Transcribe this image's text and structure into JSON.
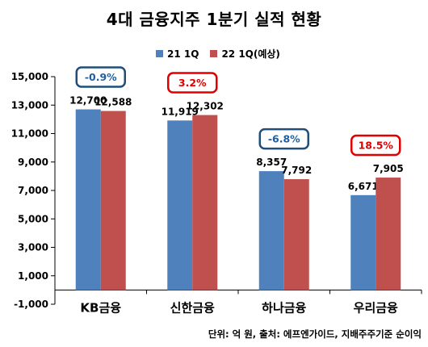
{
  "chart_data": {
    "type": "bar",
    "title": "4대 금융지주 1분기 실적 현황",
    "categories": [
      "KB금융",
      "신한금융",
      "하나금융",
      "우리금융"
    ],
    "series": [
      {
        "name": "21 1Q",
        "color": "#4F81BD",
        "values": [
          12700,
          11919,
          8357,
          6671
        ]
      },
      {
        "name": "22 1Q(예상)",
        "color": "#C0504D",
        "values": [
          12588,
          12302,
          7792,
          7905
        ]
      }
    ],
    "value_labels": [
      [
        "12,700",
        "11,919",
        "8,357",
        "6,671"
      ],
      [
        "12,588",
        "12,302",
        "7,792",
        "7,905"
      ]
    ],
    "yticks": [
      "-1,000",
      "1,000",
      "3,000",
      "5,000",
      "7,000",
      "9,000",
      "11,000",
      "13,000",
      "15,000"
    ],
    "ytick_values": [
      -1000,
      1000,
      3000,
      5000,
      7000,
      9000,
      11000,
      13000,
      15000
    ],
    "ylim": [
      -1000,
      15000
    ],
    "change_labels": [
      "-0.9%",
      "3.2%",
      "-6.8%",
      "18.5%"
    ],
    "change_directions": [
      "down",
      "up",
      "down",
      "up"
    ],
    "legend_position": "top",
    "grid": false
  },
  "colors": {
    "down_box": "#1F4E79",
    "down_text": "#1F5FA0",
    "up_box": "#E00000",
    "up_text": "#E00000",
    "axis": "#000000"
  },
  "footnote": "단위: 억 원, 출처: 에프엔가이드, 지배주주기준 순이익"
}
